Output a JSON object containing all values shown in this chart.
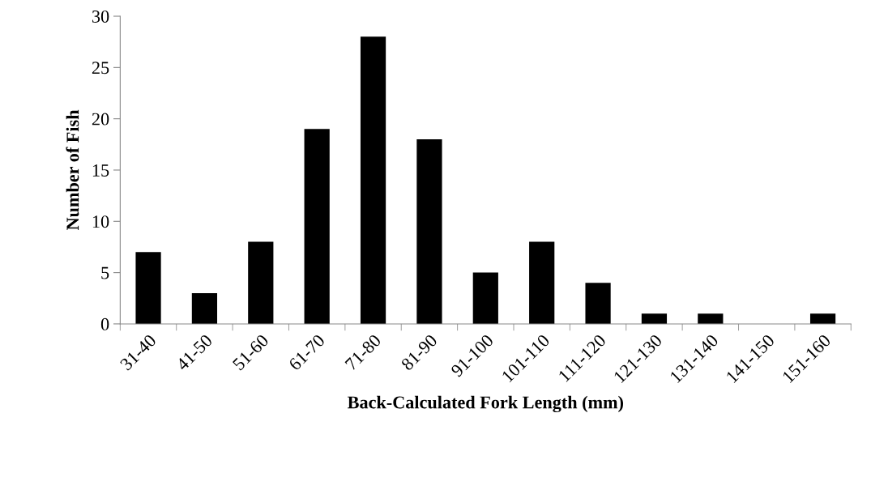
{
  "chart_data": {
    "type": "bar",
    "xlabel": "Back-Calculated Fork Length (mm)",
    "ylabel": "Number of Fish",
    "categories": [
      "31-40",
      "41-50",
      "51-60",
      "61-70",
      "71-80",
      "81-90",
      "91-100",
      "101-110",
      "111-120",
      "121-130",
      "131-140",
      "141-150",
      "151-160"
    ],
    "values": [
      7,
      3,
      8,
      19,
      28,
      18,
      5,
      8,
      4,
      1,
      1,
      0,
      1
    ],
    "color": "#000000",
    "ylim": [
      0,
      30
    ],
    "yticks": [
      0,
      5,
      10,
      15,
      20,
      25,
      30
    ],
    "grid": false,
    "legend": false
  }
}
